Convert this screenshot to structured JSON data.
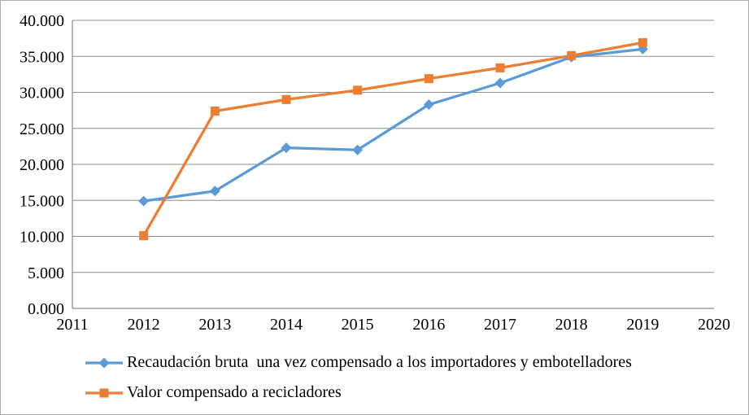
{
  "chart_data": {
    "type": "line",
    "title": "",
    "xlabel": "",
    "ylabel": "",
    "categories": [
      "2011",
      "2012",
      "2013",
      "2014",
      "2015",
      "2016",
      "2017",
      "2018",
      "2019",
      "2020"
    ],
    "series": [
      {
        "name": "Recaudación bruta  una vez compensado a los importadores y embotelladores",
        "color": "#5B9BD5",
        "marker": "diamond",
        "values": [
          null,
          14900,
          16300,
          22300,
          22000,
          28300,
          31300,
          34900,
          36000,
          null
        ]
      },
      {
        "name": "Valor compensado a recicladores",
        "color": "#ED7D31",
        "marker": "square",
        "values": [
          null,
          10100,
          27400,
          29000,
          30300,
          31900,
          33400,
          35100,
          36900,
          null
        ]
      }
    ],
    "ylim": [
      0,
      40000
    ],
    "y_step": 5000,
    "y_tick_labels": [
      "0.000",
      "5.000",
      "10.000",
      "15.000",
      "20.000",
      "25.000",
      "30.000",
      "35.000",
      "40.000"
    ],
    "grid": "horizontal",
    "legend_position": "bottom-left"
  },
  "styles": {
    "background": "#FFFFFF",
    "frame_border_color": "#ABABAB",
    "grid_color": "#8C8C8C",
    "axis_color": "#6E6E6E",
    "text_color": "#000000",
    "series_blue": "#5B9BD5",
    "series_orange": "#ED7D31"
  }
}
